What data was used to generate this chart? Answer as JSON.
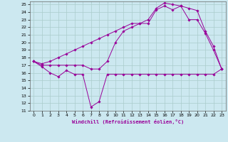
{
  "xlabel": "Windchill (Refroidissement éolien,°C)",
  "bg_color": "#cce8f0",
  "grid_color": "#aacccc",
  "line_color": "#990099",
  "xlim": [
    -0.5,
    23.5
  ],
  "ylim": [
    11,
    25.4
  ],
  "yticks": [
    11,
    12,
    13,
    14,
    15,
    16,
    17,
    18,
    19,
    20,
    21,
    22,
    23,
    24,
    25
  ],
  "xticks": [
    0,
    1,
    2,
    3,
    4,
    5,
    6,
    7,
    8,
    9,
    10,
    11,
    12,
    13,
    14,
    15,
    16,
    17,
    18,
    19,
    20,
    21,
    22,
    23
  ],
  "line1_x": [
    0,
    1,
    2,
    3,
    4,
    5,
    6,
    7,
    8,
    9,
    10,
    11,
    12,
    13,
    14,
    15,
    16,
    17,
    18,
    19,
    20,
    21,
    22,
    23
  ],
  "line1_y": [
    17.5,
    16.8,
    16.0,
    15.5,
    16.3,
    15.8,
    15.8,
    11.5,
    12.2,
    15.8,
    15.8,
    15.8,
    15.8,
    15.8,
    15.8,
    15.8,
    15.8,
    15.8,
    15.8,
    15.8,
    15.8,
    15.8,
    15.8,
    16.5
  ],
  "line2_x": [
    0,
    1,
    2,
    3,
    4,
    5,
    6,
    7,
    8,
    9,
    10,
    11,
    12,
    13,
    14,
    15,
    16,
    17,
    18,
    19,
    20,
    21,
    22,
    23
  ],
  "line2_y": [
    17.5,
    17.0,
    17.0,
    17.0,
    17.0,
    17.0,
    17.0,
    16.5,
    16.5,
    17.5,
    20.0,
    21.5,
    22.0,
    22.5,
    22.5,
    24.3,
    24.8,
    24.3,
    24.8,
    23.0,
    23.0,
    21.2,
    19.0,
    16.5
  ],
  "line3_x": [
    0,
    1,
    2,
    3,
    4,
    5,
    6,
    7,
    8,
    9,
    10,
    11,
    12,
    13,
    14,
    15,
    16,
    17,
    18,
    19,
    20,
    21,
    22,
    23
  ],
  "line3_y": [
    17.5,
    17.2,
    17.5,
    18.0,
    18.5,
    19.0,
    19.5,
    20.0,
    20.5,
    21.0,
    21.5,
    22.0,
    22.5,
    22.5,
    23.0,
    24.5,
    25.2,
    25.0,
    24.8,
    24.5,
    24.2,
    21.5,
    19.5,
    16.5
  ]
}
